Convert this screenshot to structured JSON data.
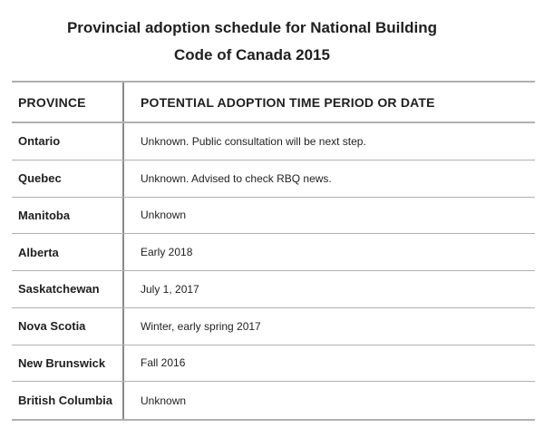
{
  "title": {
    "line1": "Provincial adoption schedule for National Building",
    "line2": "Code of Canada 2015"
  },
  "table": {
    "columns": [
      "PROVINCE",
      "POTENTIAL ADOPTION TIME PERIOD OR DATE"
    ],
    "rows": [
      {
        "province": "Ontario",
        "date": "Unknown. Public consultation will be next step."
      },
      {
        "province": "Quebec",
        "date": "Unknown. Advised to check RBQ news."
      },
      {
        "province": "Manitoba",
        "date": "Unknown"
      },
      {
        "province": "Alberta",
        "date": "Early 2018"
      },
      {
        "province": "Saskatchewan",
        "date": "July 1, 2017"
      },
      {
        "province": "Nova Scotia",
        "date": "Winter, early spring 2017"
      },
      {
        "province": "New Brunswick",
        "date": "Fall 2016"
      },
      {
        "province": "British Columbia",
        "date": "Unknown"
      }
    ]
  },
  "colors": {
    "background": "#ffffff",
    "text": "#1f1f1f",
    "horizontal_line": "#b0b0b0",
    "vertical_line": "#8a8a8a"
  }
}
